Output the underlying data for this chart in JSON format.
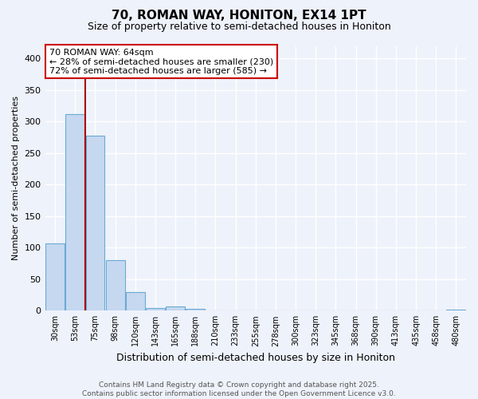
{
  "title1": "70, ROMAN WAY, HONITON, EX14 1PT",
  "title2": "Size of property relative to semi-detached houses in Honiton",
  "xlabel": "Distribution of semi-detached houses by size in Honiton",
  "ylabel": "Number of semi-detached properties",
  "bar_color": "#c5d8f0",
  "bar_edge_color": "#6aaad4",
  "categories": [
    "30sqm",
    "53sqm",
    "75sqm",
    "98sqm",
    "120sqm",
    "143sqm",
    "165sqm",
    "188sqm",
    "210sqm",
    "233sqm",
    "255sqm",
    "278sqm",
    "300sqm",
    "323sqm",
    "345sqm",
    "368sqm",
    "390sqm",
    "413sqm",
    "435sqm",
    "458sqm",
    "480sqm"
  ],
  "values": [
    107,
    312,
    278,
    80,
    30,
    4,
    7,
    3,
    0,
    0,
    0,
    0,
    0,
    0,
    0,
    0,
    0,
    0,
    0,
    0,
    2
  ],
  "annotation_text": "70 ROMAN WAY: 64sqm\n← 28% of semi-detached houses are smaller (230)\n72% of semi-detached houses are larger (585) →",
  "annotation_box_color": "#ffffff",
  "annotation_edge_color": "#cc0000",
  "vline_color": "#aa0000",
  "footer_text": "Contains HM Land Registry data © Crown copyright and database right 2025.\nContains public sector information licensed under the Open Government Licence v3.0.",
  "ylim": [
    0,
    420
  ],
  "background_color": "#eef2fa",
  "grid_color": "#ffffff",
  "title_fontsize": 11,
  "subtitle_fontsize": 9,
  "ylabel_fontsize": 8,
  "xlabel_fontsize": 9,
  "tick_fontsize": 7,
  "footer_fontsize": 6.5,
  "annotation_fontsize": 8
}
